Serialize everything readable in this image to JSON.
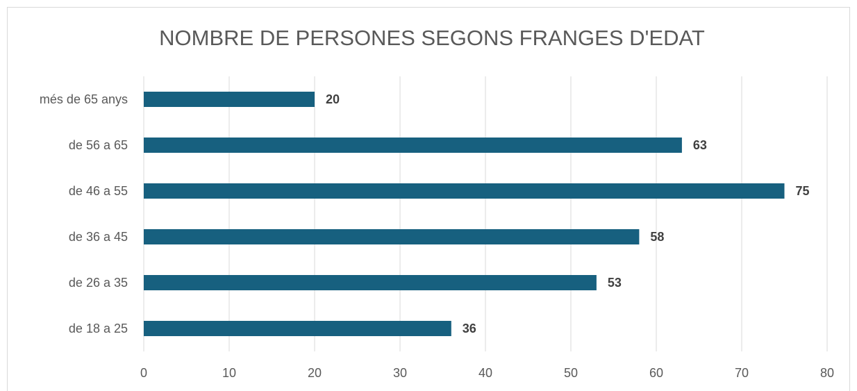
{
  "chart_data": {
    "type": "barh",
    "title": "NOMBRE DE PERSONES SEGONS FRANGES D'EDAT",
    "categories": [
      "més de 65 anys",
      "de 56 a 65",
      "de 46 a 55",
      "de 36 a 45",
      "de 26 a 35",
      "de 18 a 25"
    ],
    "values": [
      20,
      63,
      75,
      58,
      53,
      36
    ],
    "color": "#17607f",
    "xlim": [
      0,
      80
    ],
    "xticks": [
      0,
      10,
      20,
      30,
      40,
      50,
      60,
      70,
      80
    ],
    "grid": true
  }
}
